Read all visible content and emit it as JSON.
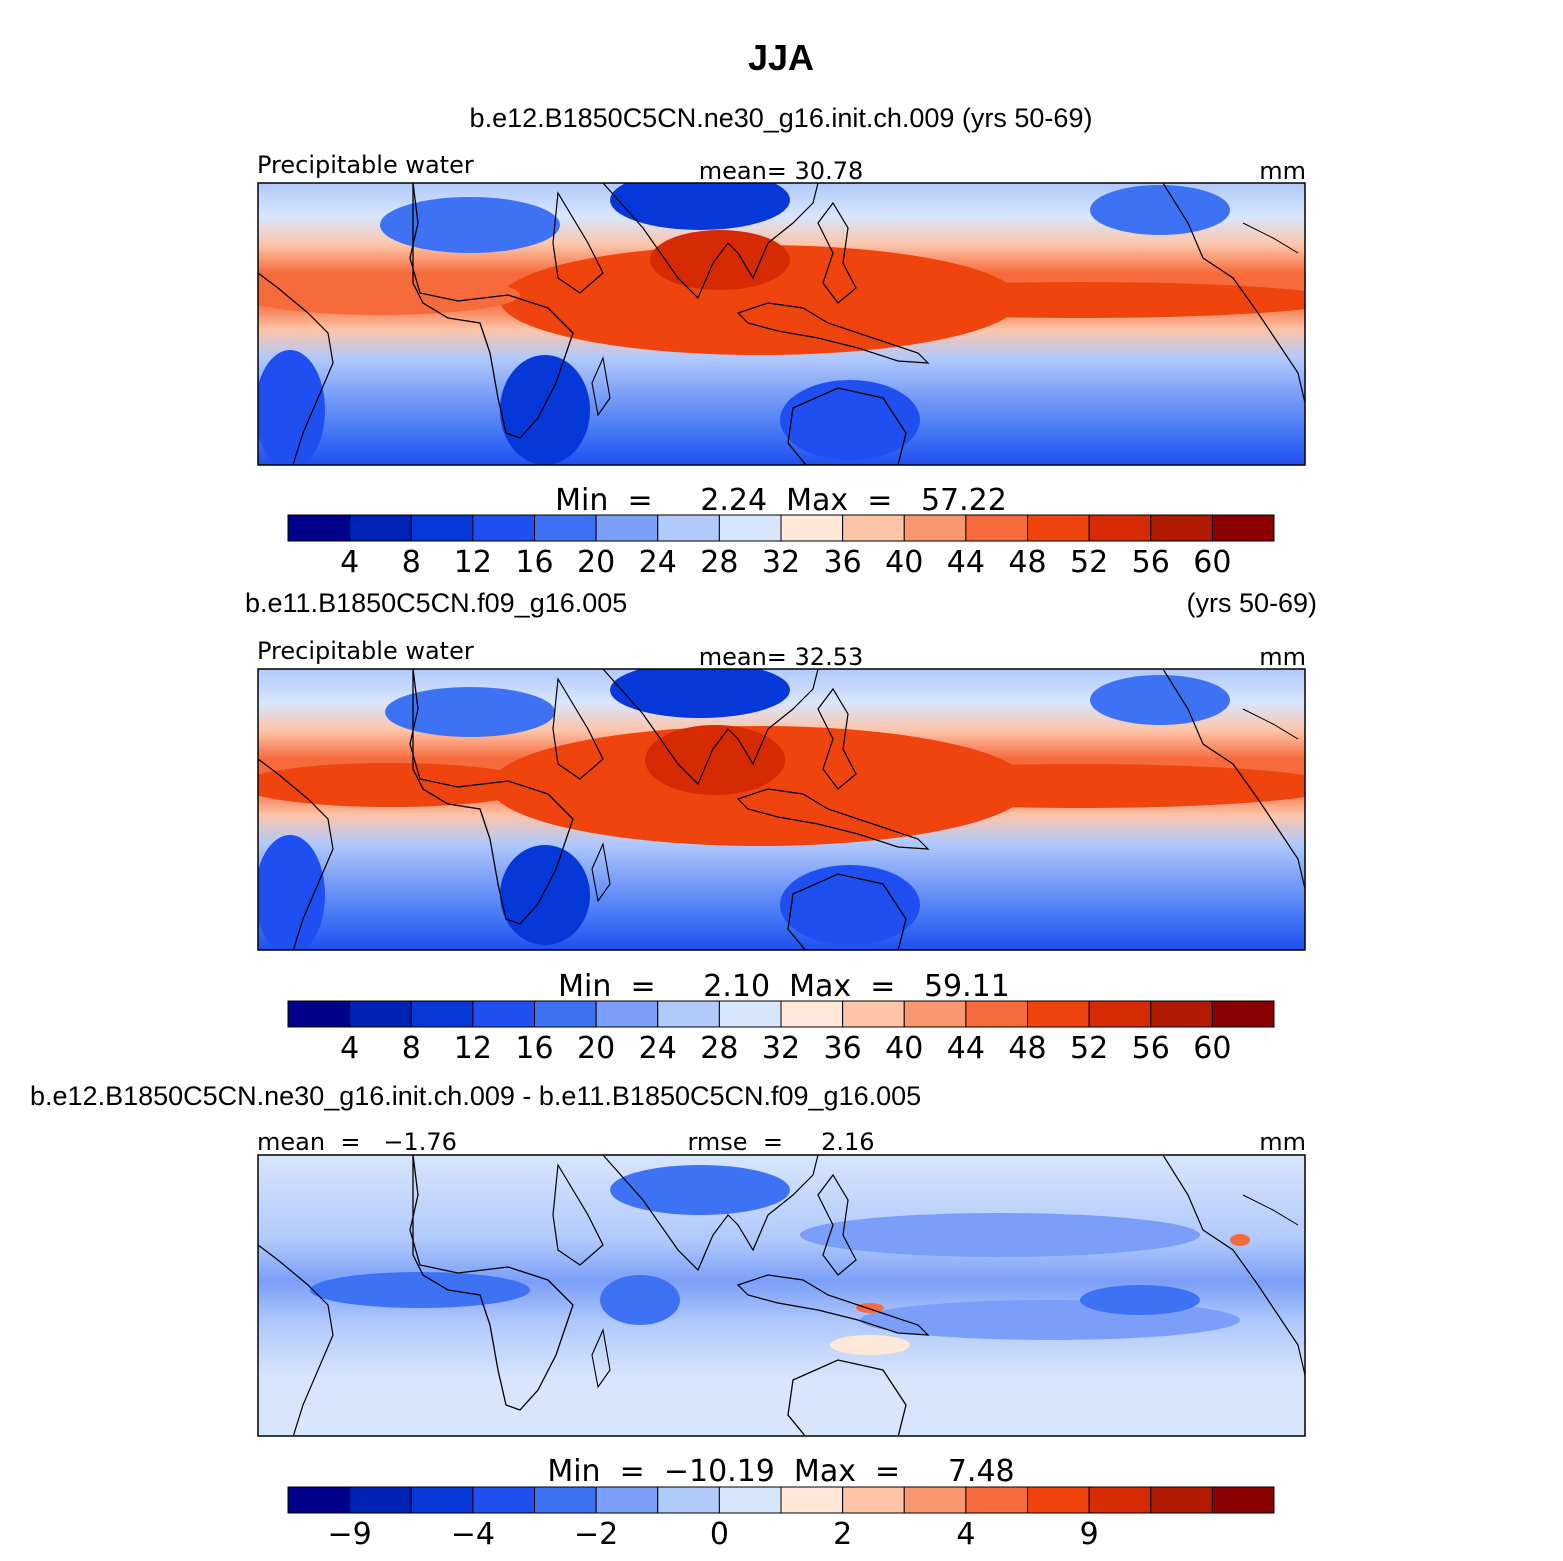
{
  "title": "JJA",
  "palette": [
    "#00008b",
    "#0022b4",
    "#0537d9",
    "#1f4ff0",
    "#3e72f4",
    "#7b9ff8",
    "#b1c9fb",
    "#d8e6fd",
    "#ffe8d8",
    "#fdc4a8",
    "#f9976f",
    "#f66b3c",
    "#f0440f",
    "#d52a04",
    "#b01a03",
    "#8b0000"
  ],
  "chart_data": [
    {
      "type": "heatmap",
      "header": "b.e12.B1850C5CN.ne30_g16.init.ch.009 (yrs 50-69)",
      "left_label": "Precipitable  water",
      "center_label": "mean=   30.78",
      "units": "mm",
      "minmax": "Min  =     2.24  Max  =   57.22",
      "colorbar_levels": [
        "4",
        "8",
        "12",
        "16",
        "20",
        "24",
        "28",
        "32",
        "36",
        "40",
        "44",
        "48",
        "52",
        "56",
        "60"
      ],
      "min": 2.24,
      "max": 57.22,
      "mean": 30.78
    },
    {
      "type": "heatmap",
      "header_left": "b.e11.B1850C5CN.f09_g16.005",
      "header_right": "(yrs 50-69)",
      "left_label": "Precipitable  water",
      "center_label": "mean=   32.53",
      "units": "mm",
      "minmax": "Min  =     2.10  Max  =   59.11",
      "colorbar_levels": [
        "4",
        "8",
        "12",
        "16",
        "20",
        "24",
        "28",
        "32",
        "36",
        "40",
        "44",
        "48",
        "52",
        "56",
        "60"
      ],
      "min": 2.1,
      "max": 59.11,
      "mean": 32.53
    },
    {
      "type": "heatmap",
      "header": "b.e12.B1850C5CN.ne30_g16.init.ch.009 - b.e11.B1850C5CN.f09_g16.005",
      "left_label": "mean  =   −1.76",
      "center_label": "rmse  =     2.16",
      "units": "mm",
      "minmax": "Min  =  −10.19  Max  =     7.48",
      "colorbar_ticks": [
        {
          "boundary": 1,
          "label": "−9"
        },
        {
          "boundary": 3,
          "label": "−4"
        },
        {
          "boundary": 5,
          "label": "−2"
        },
        {
          "boundary": 7,
          "label": "0"
        },
        {
          "boundary": 9,
          "label": "2"
        },
        {
          "boundary": 11,
          "label": "4"
        },
        {
          "boundary": 13,
          "label": "9"
        }
      ],
      "min": -10.19,
      "max": 7.48,
      "mean": -1.76,
      "rmse": 2.16
    }
  ]
}
